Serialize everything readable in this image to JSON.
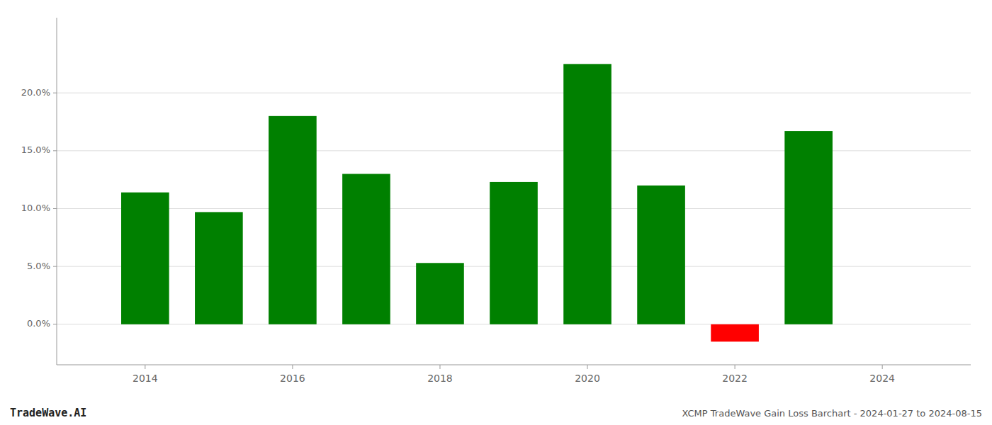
{
  "chart_data": {
    "type": "bar",
    "x": [
      2014,
      2015,
      2016,
      2017,
      2018,
      2019,
      2020,
      2021,
      2022,
      2023
    ],
    "values": [
      0.114,
      0.097,
      0.18,
      0.13,
      0.053,
      0.123,
      0.225,
      0.12,
      -0.015,
      0.167
    ],
    "colors": [
      "#008000",
      "#008000",
      "#008000",
      "#008000",
      "#008000",
      "#008000",
      "#008000",
      "#008000",
      "#ff0000",
      "#008000"
    ],
    "xlim": [
      2012.8,
      2025.2
    ],
    "xticks": [
      2014,
      2016,
      2018,
      2020,
      2022,
      2024
    ],
    "ylim": [
      -0.035,
      0.265
    ],
    "yticks": [
      {
        "value": 0.0,
        "label": "0.0%"
      },
      {
        "value": 0.05,
        "label": "5.0%"
      },
      {
        "value": 0.1,
        "label": "10.0%"
      },
      {
        "value": 0.15,
        "label": "15.0%"
      },
      {
        "value": 0.2,
        "label": "20.0%"
      }
    ],
    "grid": true,
    "annotations": [
      "TradeWave.AI",
      "XCMP TradeWave Gain Loss Barchart - 2024-01-27 to 2024-08-15"
    ]
  }
}
